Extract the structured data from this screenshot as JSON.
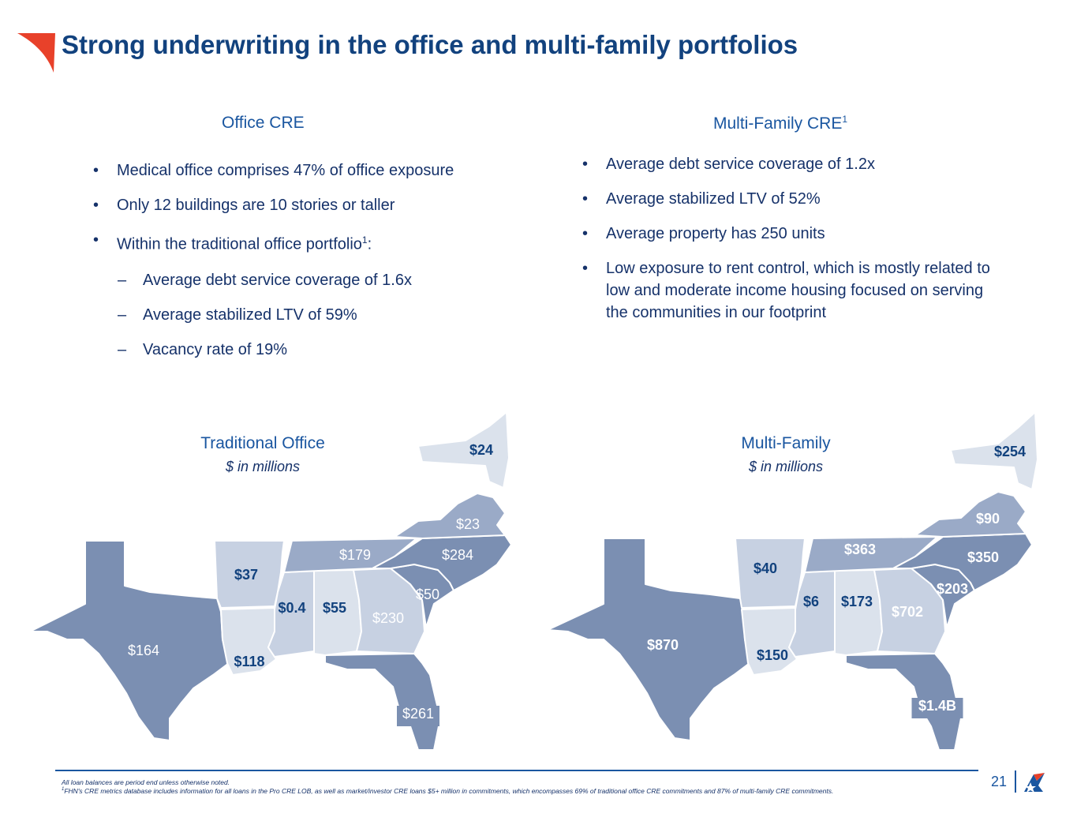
{
  "page": {
    "title": "Strong underwriting in the office and multi-family portfolios",
    "page_number": "21"
  },
  "left": {
    "heading": "Office CRE",
    "bullets": [
      "Medical office comprises 47% of office exposure",
      "Only 12 buildings are 10 stories or taller",
      "Within the traditional office portfolio"
    ],
    "bullet3_sup": "1",
    "bullet3_colon": ":",
    "sub_bullets": [
      "Average debt service coverage of 1.6x",
      "Average stabilized LTV of 59%",
      "Vacancy rate of 19%"
    ]
  },
  "right": {
    "heading": "Multi-Family CRE",
    "heading_sup": "1",
    "bullets": [
      "Average debt service coverage of 1.2x",
      "Average stabilized LTV of 52%",
      "Average property has 250 units",
      "Low exposure to rent control, which is mostly related to low and moderate income housing focused on serving the communities in our footprint"
    ]
  },
  "map_office": {
    "title": "Traditional Office",
    "subtitle": "$ in millions",
    "values": {
      "TX": "$164",
      "AR": "$37",
      "LA": "$118",
      "MS": "$0.4",
      "AL": "$55",
      "TN": "$179",
      "GA": "$230",
      "FL": "$261",
      "SC": "$50",
      "NC": "$284",
      "VA": "$23",
      "NY": "$24"
    }
  },
  "map_multifamily": {
    "title": "Multi-Family",
    "subtitle": "$ in millions",
    "values": {
      "TX": "$870",
      "AR": "$40",
      "LA": "$150",
      "MS": "$6",
      "AL": "$173",
      "TN": "$363",
      "GA": "$702",
      "FL": "$1.4B",
      "SC": "$203",
      "NC": "$350",
      "VA": "$90",
      "NY": "$254"
    }
  },
  "colors": {
    "title_blue": "#12427e",
    "dark_state": "#7b8fb2",
    "mid_state": "#9aaac7",
    "light_state": "#c7d1e2",
    "pale_state": "#dbe2ec"
  },
  "footnotes": {
    "line1": "All loan balances are period end unless otherwise noted.",
    "line2_sup": "1",
    "line2": "FHN's CRE metrics database includes information for all loans in the Pro CRE LOB, as well as market/investor CRE loans $5+ million in commitments, which encompasses 69% of traditional office CRE commitments and 87% of multi-family CRE commitments."
  }
}
